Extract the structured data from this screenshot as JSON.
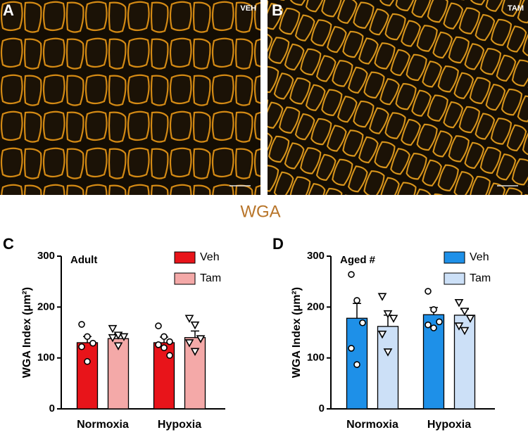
{
  "figure": {
    "panel_a": {
      "label": "A",
      "tag": "VEH"
    },
    "panel_b": {
      "label": "B",
      "tag": "TAM"
    },
    "stain": "WGA"
  },
  "chart_data": [
    {
      "type": "bar",
      "panel_label": "C",
      "annotation": "Adult",
      "ylabel": "WGA Index (μm²)",
      "categories": [
        "Normoxia",
        "Hypoxia"
      ],
      "ylim": [
        0,
        300
      ],
      "yticks": [
        0,
        100,
        200,
        300
      ],
      "legend": "top-right",
      "series": [
        {
          "name": "Veh",
          "color": "#e8141a",
          "marker": "circle",
          "values": [
            130,
            130
          ],
          "errors": [
            12,
            11
          ],
          "points": [
            [
              166,
              142,
              129,
              122,
              93
            ],
            [
              163,
              142,
              132,
              126,
              120,
              105
            ]
          ]
        },
        {
          "name": "Tam",
          "color": "#f4a9a8",
          "marker": "triangle",
          "values": [
            138,
            140
          ],
          "errors": [
            9,
            13
          ],
          "points": [
            [
              158,
              145,
              142,
              140,
              124
            ],
            [
              178,
              165,
              138,
              130,
              113
            ]
          ]
        }
      ]
    },
    {
      "type": "bar",
      "panel_label": "D",
      "annotation": "Aged #",
      "ylabel": "WGA Index (μm²)",
      "categories": [
        "Normoxia",
        "Hypoxia"
      ],
      "ylim": [
        0,
        300
      ],
      "yticks": [
        0,
        100,
        200,
        300
      ],
      "legend": "top-right",
      "series": [
        {
          "name": "Veh",
          "color": "#1e90e8",
          "marker": "circle",
          "values": [
            178,
            185
          ],
          "errors": [
            29,
            14
          ],
          "points": [
            [
              264,
              213,
              169,
              119,
              87
            ],
            [
              231,
              195,
              171,
              165,
              159
            ]
          ]
        },
        {
          "name": "Tam",
          "color": "#cce0f7",
          "marker": "triangle",
          "values": [
            162,
            184
          ],
          "errors": [
            22,
            12
          ],
          "points": [
            [
              221,
              187,
              178,
              147,
              112
            ],
            [
              209,
              192,
              178,
              163,
              154
            ]
          ]
        }
      ]
    }
  ]
}
